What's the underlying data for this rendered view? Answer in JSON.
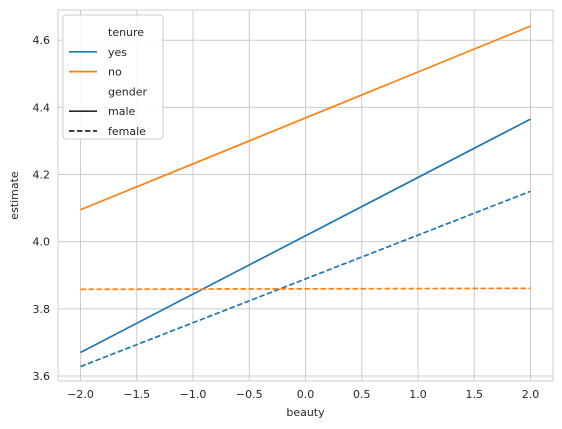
{
  "chart_data": {
    "type": "line",
    "title": "",
    "xlabel": "beauty",
    "ylabel": "estimate",
    "xlim": [
      -2.2,
      2.2
    ],
    "ylim": [
      3.585,
      4.69
    ],
    "xticks": [
      -2.0,
      -1.5,
      -1.0,
      -0.5,
      0.0,
      0.5,
      1.0,
      1.5,
      2.0
    ],
    "xtick_labels": [
      "−2.0",
      "−1.5",
      "−1.0",
      "−0.5",
      "0.0",
      "0.5",
      "1.0",
      "1.5",
      "2.0"
    ],
    "yticks": [
      3.6,
      3.8,
      4.0,
      4.2,
      4.4,
      4.6
    ],
    "ytick_labels": [
      "3.6",
      "3.8",
      "4.0",
      "4.2",
      "4.4",
      "4.6"
    ],
    "grid": true,
    "legend_position": "top-left",
    "legend": {
      "hue_title": "tenure",
      "hue_entries": [
        {
          "label": "yes",
          "color": "#1f77b4"
        },
        {
          "label": "no",
          "color": "#ff7f0e"
        }
      ],
      "style_title": "gender",
      "style_entries": [
        {
          "label": "male",
          "dash": "solid"
        },
        {
          "label": "female",
          "dash": "dashed"
        }
      ]
    },
    "series": [
      {
        "tenure": "yes",
        "gender": "male",
        "color": "#1f77b4",
        "dash": "solid",
        "x": [
          -2.0,
          2.0
        ],
        "y": [
          3.67,
          4.365
        ]
      },
      {
        "tenure": "no",
        "gender": "male",
        "color": "#ff7f0e",
        "dash": "solid",
        "x": [
          -2.0,
          2.0
        ],
        "y": [
          4.095,
          4.642
        ]
      },
      {
        "tenure": "yes",
        "gender": "female",
        "color": "#1f77b4",
        "dash": "dashed",
        "x": [
          -2.0,
          2.0
        ],
        "y": [
          3.628,
          4.15
        ]
      },
      {
        "tenure": "no",
        "gender": "female",
        "color": "#ff7f0e",
        "dash": "dashed",
        "x": [
          -2.0,
          2.0
        ],
        "y": [
          3.858,
          3.861
        ]
      }
    ]
  }
}
